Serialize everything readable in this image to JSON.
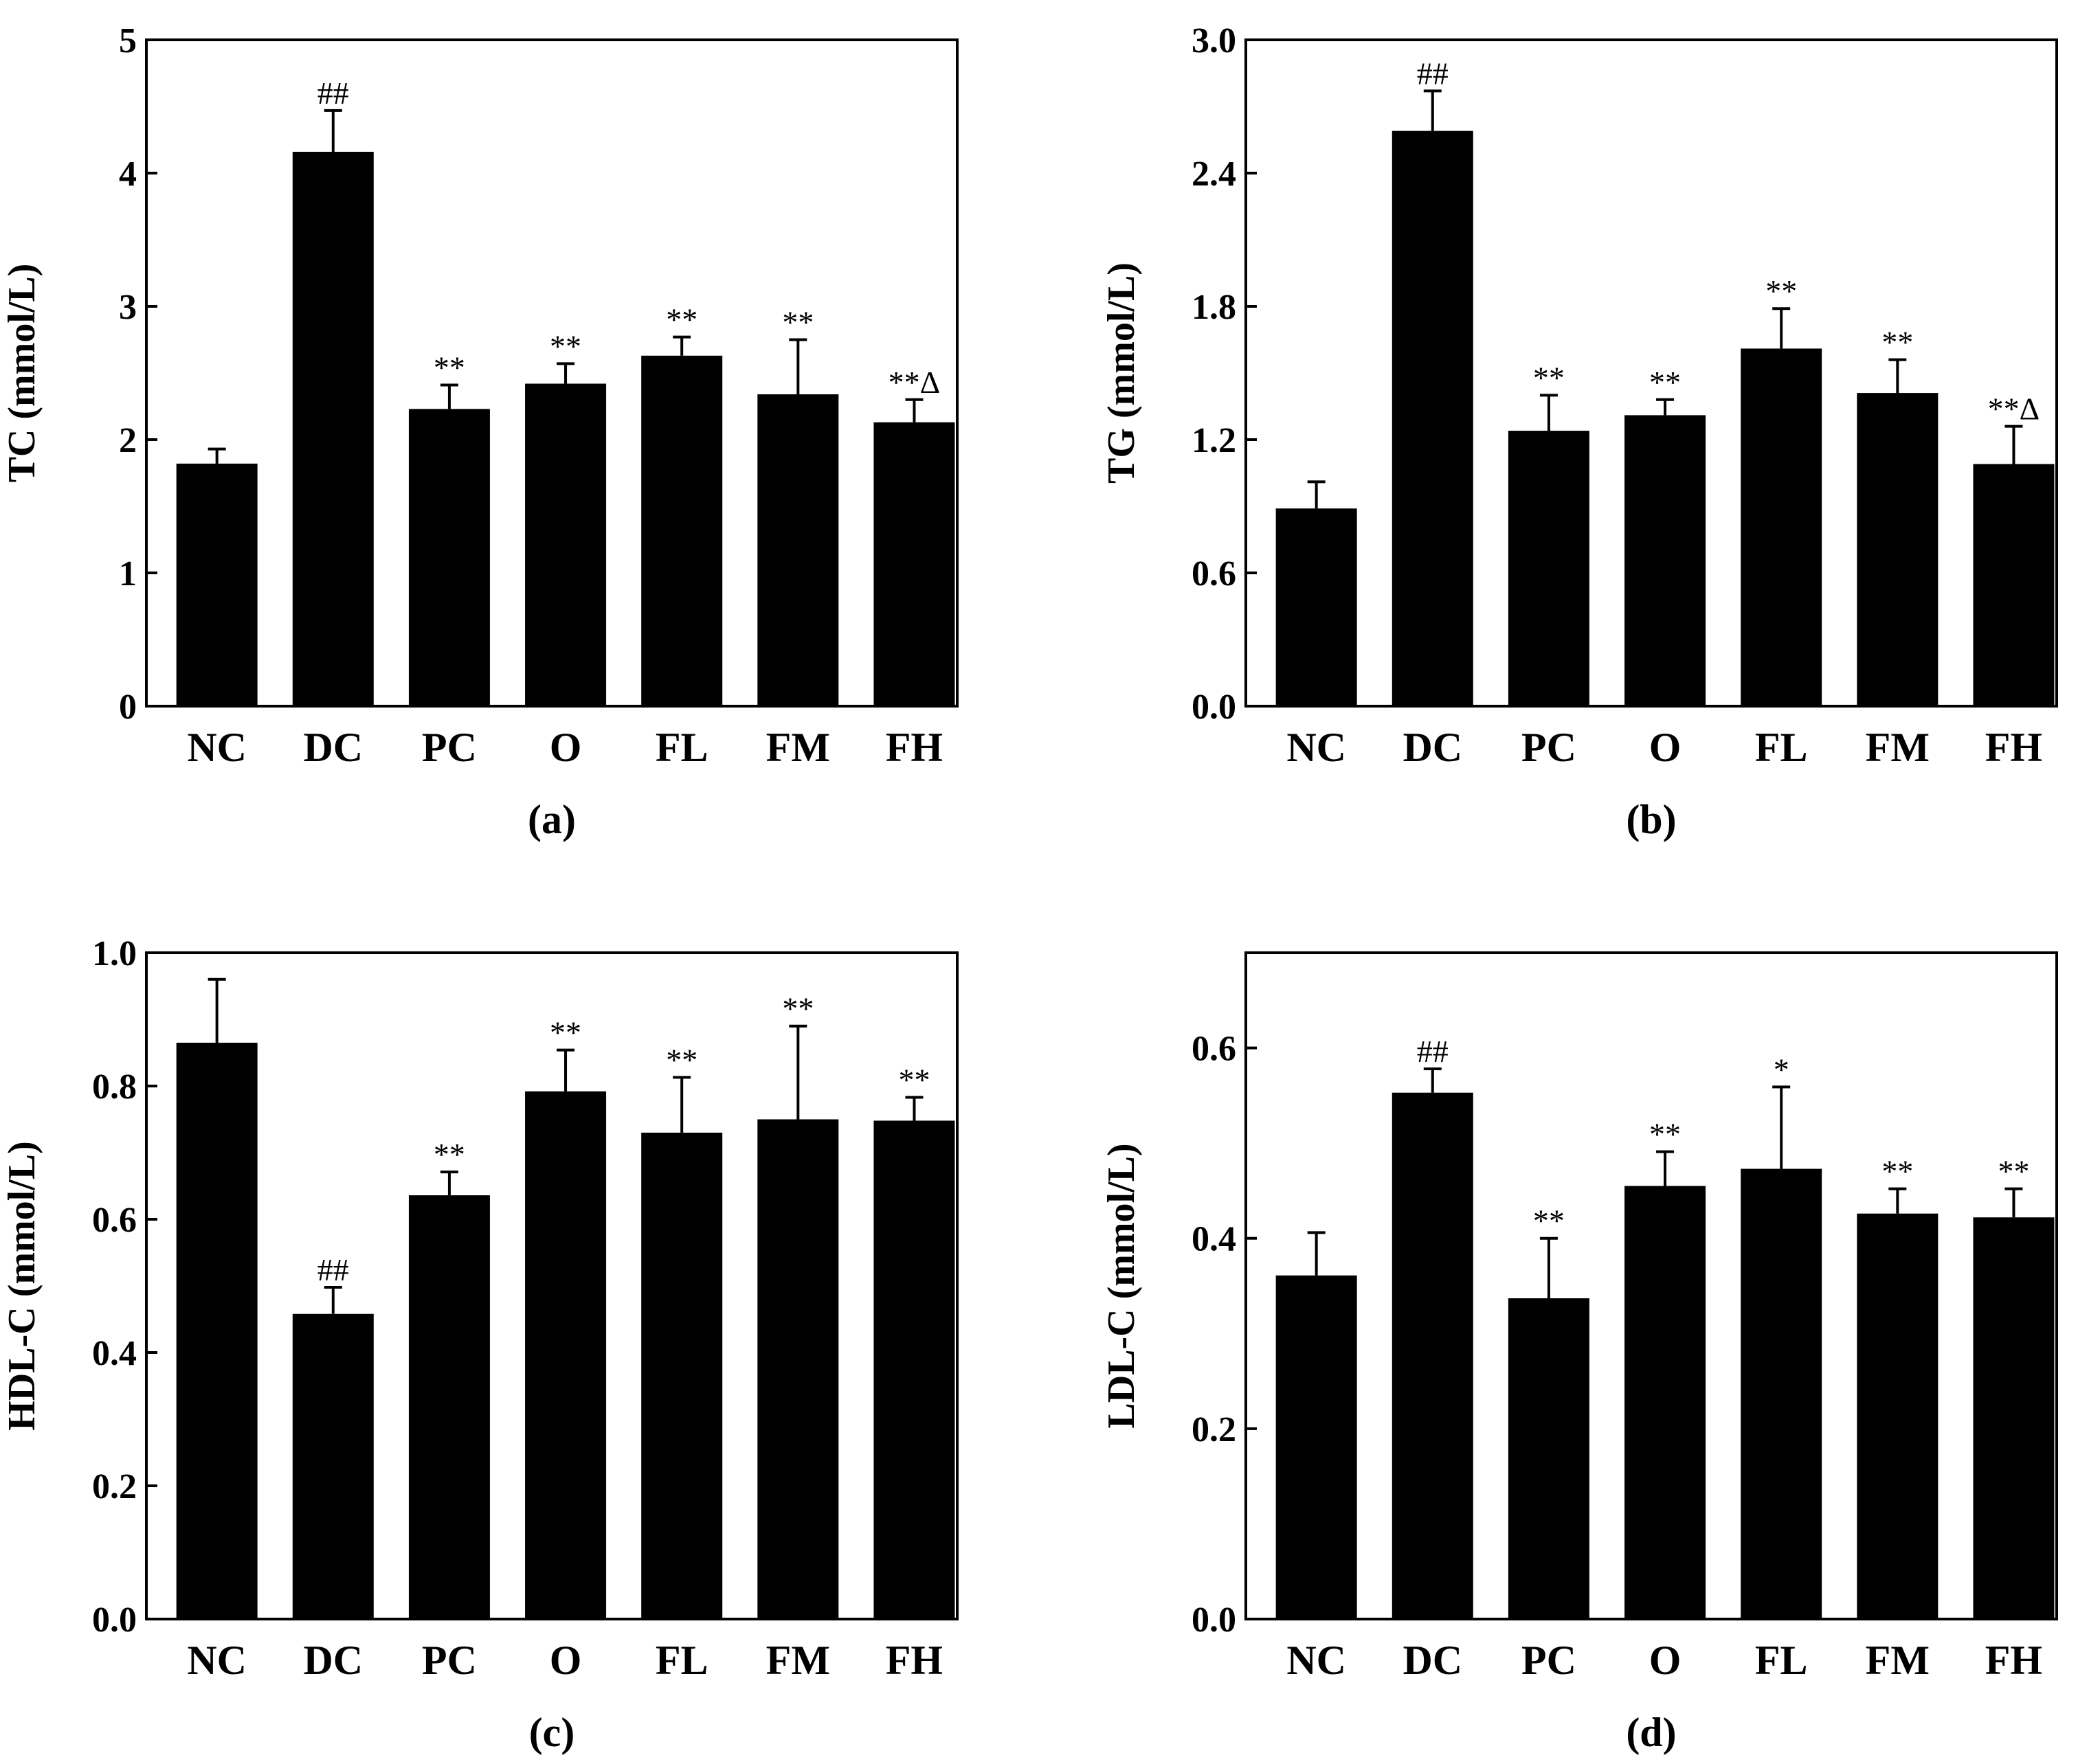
{
  "chart_data": [
    {
      "type": "bar",
      "panel_label": "(a)",
      "ylabel": "TC (mmol/L)",
      "xlabel": "",
      "categories": [
        "NC",
        "DC",
        "PC",
        "O",
        "FL",
        "FM",
        "FH"
      ],
      "values": [
        1.82,
        4.16,
        2.23,
        2.42,
        2.63,
        2.34,
        2.13
      ],
      "errors": [
        0.11,
        0.31,
        0.18,
        0.15,
        0.14,
        0.41,
        0.17
      ],
      "annotations": [
        "",
        "##",
        "**",
        "**",
        "**",
        "**",
        "**Δ"
      ],
      "ylim": [
        0,
        5
      ],
      "yticks": [
        0,
        1,
        2,
        3,
        4,
        5
      ],
      "ytick_labels": [
        "0",
        "1",
        "2",
        "3",
        "4",
        "5"
      ]
    },
    {
      "type": "bar",
      "panel_label": "(b)",
      "ylabel": "TG (mmol/L)",
      "xlabel": "",
      "categories": [
        "NC",
        "DC",
        "PC",
        "O",
        "FL",
        "FM",
        "FH"
      ],
      "values": [
        0.89,
        2.59,
        1.24,
        1.31,
        1.61,
        1.41,
        1.09
      ],
      "errors": [
        0.12,
        0.18,
        0.16,
        0.07,
        0.18,
        0.15,
        0.17
      ],
      "annotations": [
        "",
        "##",
        "**",
        "**",
        "**",
        "**",
        "**Δ"
      ],
      "ylim": [
        0,
        3.0
      ],
      "yticks": [
        0,
        0.6,
        1.2,
        1.8,
        2.4,
        3.0
      ],
      "ytick_labels": [
        "0.0",
        "0.6",
        "1.2",
        "1.8",
        "2.4",
        "3.0"
      ]
    },
    {
      "type": "bar",
      "panel_label": "(c)",
      "ylabel": "HDL-C (mmol/L)",
      "xlabel": "",
      "categories": [
        "NC",
        "DC",
        "PC",
        "O",
        "FL",
        "FM",
        "FH"
      ],
      "values": [
        0.865,
        0.458,
        0.636,
        0.792,
        0.73,
        0.75,
        0.748
      ],
      "errors": [
        0.095,
        0.04,
        0.035,
        0.062,
        0.083,
        0.14,
        0.035
      ],
      "annotations": [
        "",
        "##",
        "**",
        "**",
        "**",
        "**",
        "**"
      ],
      "ylim": [
        0,
        1.0
      ],
      "yticks": [
        0,
        0.2,
        0.4,
        0.6,
        0.8,
        1.0
      ],
      "ytick_labels": [
        "0.0",
        "0.2",
        "0.4",
        "0.6",
        "0.8",
        "1.0"
      ]
    },
    {
      "type": "bar",
      "panel_label": "(d)",
      "ylabel": "LDL-C (mmol/L)",
      "xlabel": "",
      "categories": [
        "NC",
        "DC",
        "PC",
        "O",
        "FL",
        "FM",
        "FH"
      ],
      "values": [
        0.361,
        0.553,
        0.337,
        0.455,
        0.473,
        0.426,
        0.422
      ],
      "errors": [
        0.045,
        0.025,
        0.063,
        0.036,
        0.086,
        0.026,
        0.03
      ],
      "annotations": [
        "",
        "##",
        "**",
        "**",
        "*",
        "**",
        "**"
      ],
      "ylim": [
        0,
        0.7
      ],
      "yticks": [
        0,
        0.2,
        0.4,
        0.6
      ],
      "ytick_labels": [
        "0.0",
        "0.2",
        "0.4",
        "0.6"
      ]
    }
  ]
}
